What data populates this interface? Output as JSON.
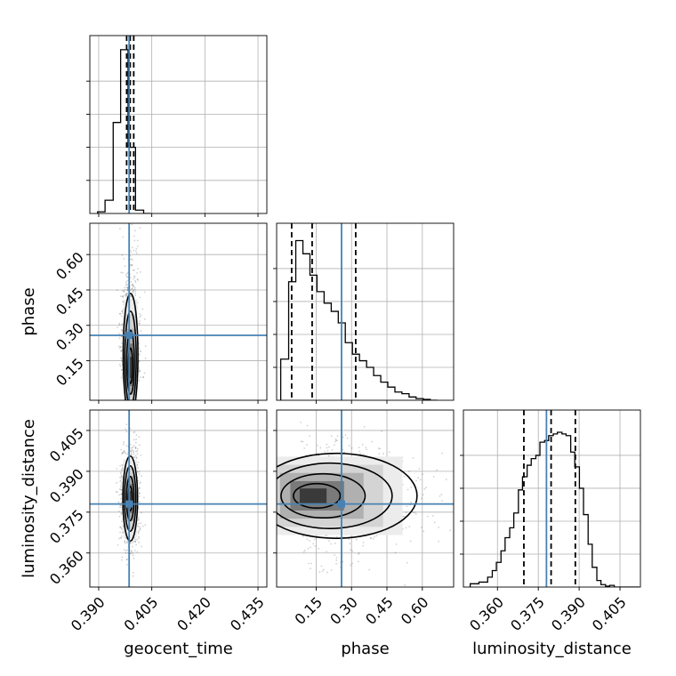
{
  "chart_data": {
    "type": "corner",
    "parameters": [
      "geocent_time",
      "phase",
      "luminosity_distance"
    ],
    "ranges": {
      "geocent_time": [
        0.3875,
        0.4375
      ],
      "phase": [
        -0.0174,
        0.7326
      ],
      "luminosity_distance": [
        0.3475,
        0.4125
      ]
    },
    "ticks": {
      "geocent_time": [
        "0.390",
        "0.405",
        "0.420",
        "0.435"
      ],
      "phase": [
        "0.15",
        "0.30",
        "0.45",
        "0.60"
      ],
      "luminosity_distance": [
        "0.360",
        "0.375",
        "0.390",
        "0.405"
      ]
    },
    "truths": {
      "geocent_time": 0.3986,
      "phase": 0.2577,
      "luminosity_distance": 0.378
    },
    "quantiles": {
      "geocent_time": [
        0.3979,
        0.3989,
        0.3999
      ],
      "phase": [
        0.0463,
        0.1331,
        0.3177
      ],
      "luminosity_distance": [
        0.3697,
        0.3797,
        0.3886
      ]
    },
    "histograms": {
      "geocent_time": {
        "edges": [
          0.3897,
          0.3918,
          0.3941,
          0.3962,
          0.3983,
          0.4004,
          0.4027,
          0.4048
        ],
        "counts": [
          0.01,
          0.08,
          0.55,
          0.99,
          0.4,
          0.02,
          0.0
        ]
      },
      "phase": {
        "edges": [
          0.0,
          0.0336,
          0.0638,
          0.094,
          0.1238,
          0.1536,
          0.1838,
          0.214,
          0.2438,
          0.2736,
          0.3038,
          0.3336,
          0.3638,
          0.3936,
          0.4238,
          0.4536,
          0.4838,
          0.5136,
          0.5438,
          0.5736,
          0.6038,
          0.6336,
          0.6638
        ],
        "counts": [
          0.25,
          0.72,
          0.97,
          0.89,
          0.76,
          0.66,
          0.59,
          0.54,
          0.47,
          0.35,
          0.28,
          0.24,
          0.2,
          0.15,
          0.11,
          0.08,
          0.05,
          0.04,
          0.02,
          0.01,
          0.005,
          0.0
        ]
      },
      "luminosity_distance": {
        "edges": [
          0.35,
          0.3532,
          0.3549,
          0.3564,
          0.3581,
          0.3596,
          0.3613,
          0.3628,
          0.3645,
          0.366,
          0.3677,
          0.3692,
          0.3709,
          0.3724,
          0.3741,
          0.3756,
          0.3773,
          0.3788,
          0.3805,
          0.382,
          0.3837,
          0.3852,
          0.3869,
          0.3884,
          0.3901,
          0.3916,
          0.3933,
          0.3948,
          0.3965,
          0.398,
          0.3997,
          0.4012,
          0.4029,
          0.412
        ],
        "counts": [
          0.02,
          0.03,
          0.03,
          0.06,
          0.1,
          0.15,
          0.22,
          0.3,
          0.36,
          0.45,
          0.59,
          0.67,
          0.74,
          0.78,
          0.8,
          0.88,
          0.89,
          0.92,
          0.93,
          0.94,
          0.93,
          0.92,
          0.82,
          0.73,
          0.6,
          0.44,
          0.26,
          0.12,
          0.04,
          0.015,
          0.005,
          0.01,
          0.0
        ]
      }
    },
    "joint": [
      {
        "x": "geocent_time",
        "y": "phase",
        "peak": [
          0.399,
          0.11
        ],
        "spread": [
          0.0008,
          0.1
        ]
      },
      {
        "x": "geocent_time",
        "y": "luminosity_distance",
        "peak": [
          0.3989,
          0.38
        ],
        "spread": [
          0.0008,
          0.006
        ]
      },
      {
        "x": "phase",
        "y": "luminosity_distance",
        "peak": [
          0.12,
          0.381
        ],
        "spread": [
          0.11,
          0.006
        ]
      }
    ],
    "grid": true,
    "colors": {
      "truth": "#4682b4",
      "hist": "#000000",
      "quantile": "#000000",
      "contour": "#000000"
    }
  }
}
